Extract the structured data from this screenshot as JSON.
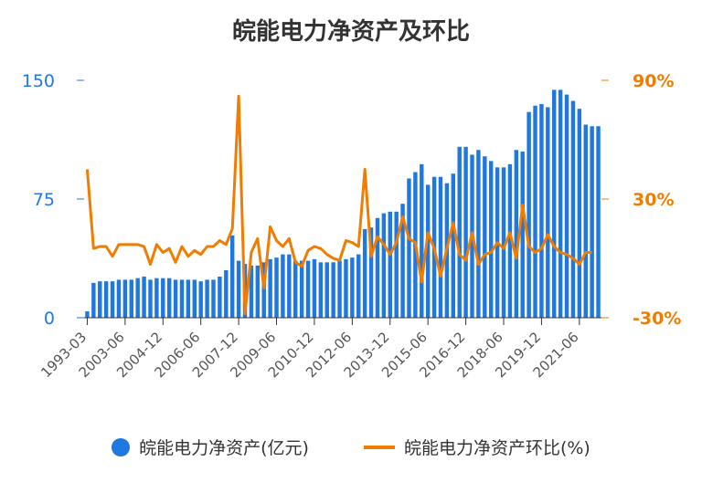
{
  "chart_data": {
    "type": "bar+line",
    "title": "皖能电力净资产及环比",
    "colors": {
      "bar": "#1f77e0",
      "line": "#f07c00",
      "axis_left": "#1f77e0",
      "axis_right": "#f07c00"
    },
    "y_left": {
      "ticks": [
        "0",
        "75",
        "150"
      ],
      "ylim": [
        0,
        150
      ]
    },
    "y_right": {
      "ticks": [
        "-30%",
        "30%",
        "90%"
      ],
      "ylim": [
        -30,
        90
      ]
    },
    "x_tick_labels": [
      "1993-03",
      "2003-06",
      "2004-12",
      "2006-06",
      "2007-12",
      "2009-06",
      "2010-12",
      "2012-06",
      "2013-12",
      "2015-06",
      "2016-12",
      "2018-06",
      "2019-12",
      "2021-06"
    ],
    "series": [
      {
        "name": "皖能电力净资产(亿元)",
        "kind": "bar",
        "values": [
          4,
          22,
          23,
          23,
          23,
          24,
          24,
          24,
          25,
          26,
          24,
          25,
          25,
          25,
          24,
          24,
          24,
          24,
          23,
          24,
          24,
          26,
          30,
          52,
          36,
          34,
          33,
          33,
          35,
          37,
          38,
          40,
          40,
          36,
          36,
          36,
          37,
          35,
          35,
          35,
          36,
          37,
          38,
          40,
          56,
          57,
          63,
          66,
          67,
          67,
          72,
          88,
          92,
          97,
          84,
          89,
          89,
          85,
          91,
          108,
          108,
          103,
          106,
          102,
          99,
          95,
          95,
          97,
          106,
          105,
          130,
          134,
          135,
          133,
          144,
          144,
          141,
          137,
          132,
          122,
          121,
          121
        ]
      },
      {
        "name": "皖能电力净资产环比(%)",
        "kind": "line",
        "values": [
          45,
          5,
          6,
          6,
          1,
          7,
          7,
          7,
          7,
          6,
          -3,
          7,
          3,
          5,
          -2,
          6,
          1,
          4,
          2,
          6,
          6,
          9,
          7,
          15,
          82,
          -28,
          3,
          10,
          -15,
          16,
          9,
          6,
          10,
          -2,
          -4,
          4,
          6,
          5,
          2,
          0,
          -1,
          9,
          8,
          6,
          45,
          1,
          11,
          7,
          2,
          8,
          21,
          10,
          8,
          -12,
          13,
          5,
          -9,
          5,
          18,
          2,
          -1,
          13,
          -3,
          2,
          3,
          8,
          5,
          13,
          0,
          27,
          6,
          3,
          5,
          12,
          6,
          3,
          2,
          0,
          -3,
          3,
          3
        ]
      }
    ]
  }
}
